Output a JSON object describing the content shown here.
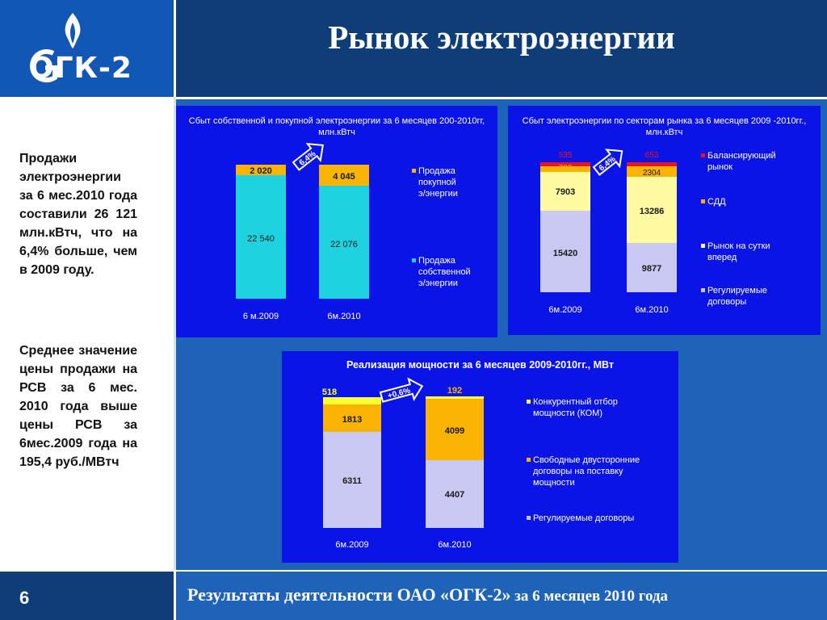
{
  "header": {
    "title": "Рынок электроэнергии",
    "logo_text": "ОГК-2"
  },
  "left": {
    "text1": "Продажи электроэнергии за 6 мес.2010 года составили 26 121 млн.кВтч, что на 6,4% больше, чем в 2009 году.",
    "text2": "Среднее значение цены продажи на РСВ за 6 мес. 2010 года выше цены РСВ за 6мес.2009 года на 195,4 руб./МВтч"
  },
  "footer": {
    "page": "6",
    "text_part1": "Результаты деятельности ОАО «ОГК-2»",
    "text_part2": " за 6 месяцев 2010 года"
  },
  "colors": {
    "header_dark": "#0f3d78",
    "logo_blue": "#1257b5",
    "main_blue": "#1f63b9",
    "chart_bg": "#0a14e6",
    "cyan": "#1fd2e0",
    "orange": "#f8b400",
    "pale_yellow": "#fffba0",
    "lavender": "#c8c8f0",
    "red": "#e8141e",
    "yellow": "#ffff33"
  },
  "chart_data": [
    {
      "type": "bar",
      "title": "Сбыт собственной и покупной электроэнергии за 6 месяцев 200-2010гг, млн.кВтч",
      "categories": [
        "6 м.2009",
        "6м.2010"
      ],
      "series": [
        {
          "name": "Продажа собственной э/энергии",
          "values": [
            22540,
            22076
          ],
          "labels": [
            "22 540",
            "22 076"
          ]
        },
        {
          "name": "Продажа покупной э/энергии",
          "values": [
            2020,
            4045
          ],
          "labels": [
            "2 020",
            "4 045"
          ]
        }
      ],
      "annotation": "6,4%",
      "legend": "right"
    },
    {
      "type": "bar",
      "title": "Сбыт электроэнергии по секторам рынка за 6 месяцев 2009 -2010гг., млн.кВтч",
      "categories": [
        "6м.2009",
        "6м.2010"
      ],
      "series": [
        {
          "name": "Регулируемые договоры",
          "values": [
            15420,
            9877
          ]
        },
        {
          "name": "Рынок на сутки вперед",
          "values": [
            7903,
            13286
          ]
        },
        {
          "name": "СДД",
          "values": [
            702,
            2304
          ]
        },
        {
          "name": "Балансирующий рынок",
          "values": [
            535,
            653
          ]
        }
      ],
      "annotation": "6,4%",
      "legend": "right"
    },
    {
      "type": "bar",
      "title": "Реализация мощности за 6 месяцев 2009-2010гг., МВт",
      "categories": [
        "6м.2009",
        "6м.2010"
      ],
      "series": [
        {
          "name": "Регулируемые договоры",
          "values": [
            6311,
            4407
          ]
        },
        {
          "name": "Свободные двусторонние договоры на поставку мощности",
          "values": [
            1813,
            4099
          ]
        },
        {
          "name": "Конкурентный отбор мощности (КОМ)",
          "values": [
            518,
            192
          ]
        }
      ],
      "annotation": "+0,6%",
      "legend": "right"
    }
  ]
}
